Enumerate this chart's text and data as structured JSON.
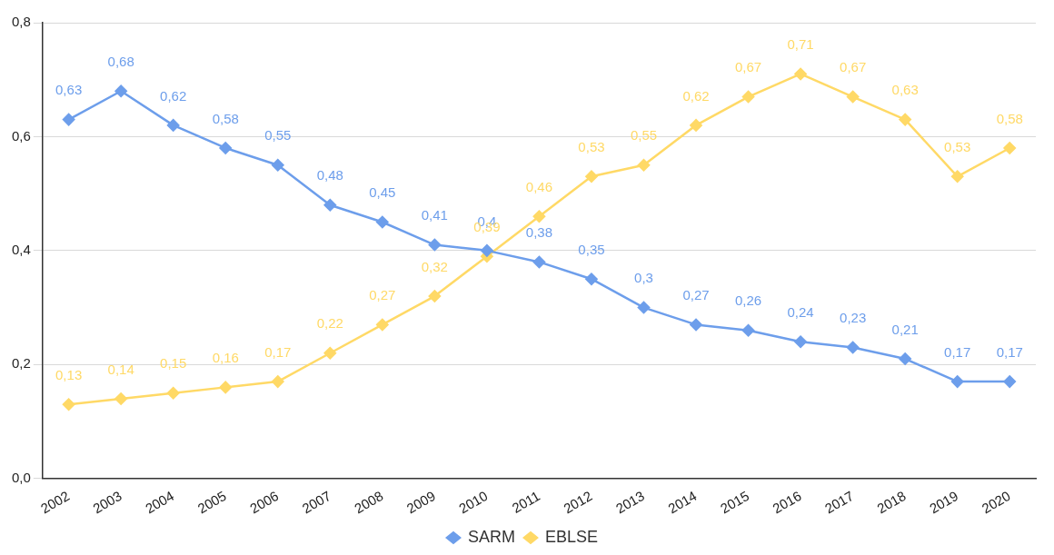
{
  "chart_data": {
    "type": "line",
    "categories": [
      "2002",
      "2003",
      "2004",
      "2005",
      "2006",
      "2007",
      "2008",
      "2009",
      "2010",
      "2011",
      "2012",
      "2013",
      "2014",
      "2015",
      "2016",
      "2017",
      "2018",
      "2019",
      "2020"
    ],
    "series": [
      {
        "name": "SARM",
        "color": "#6d9eeb",
        "values": [
          0.63,
          0.68,
          0.62,
          0.58,
          0.55,
          0.48,
          0.45,
          0.41,
          0.4,
          0.38,
          0.35,
          0.3,
          0.27,
          0.26,
          0.24,
          0.23,
          0.21,
          0.17,
          0.17
        ],
        "value_labels": [
          "0,63",
          "0,68",
          "0,62",
          "0,58",
          "0,55",
          "0,48",
          "0,45",
          "0,41",
          "0,4",
          "0,38",
          "0,35",
          "0,3",
          "0,27",
          "0,26",
          "0,24",
          "0,23",
          "0,21",
          "0,17",
          "0,17"
        ]
      },
      {
        "name": "EBLSE",
        "color": "#ffd966",
        "values": [
          0.13,
          0.14,
          0.15,
          0.16,
          0.17,
          0.22,
          0.27,
          0.32,
          0.39,
          0.46,
          0.53,
          0.55,
          0.62,
          0.67,
          0.71,
          0.67,
          0.63,
          0.53,
          0.58
        ],
        "value_labels": [
          "0,13",
          "0,14",
          "0,15",
          "0,16",
          "0,17",
          "0,22",
          "0,27",
          "0,32",
          "0,39",
          "0,46",
          "0,53",
          "0,55",
          "0,62",
          "0,67",
          "0,71",
          "0,67",
          "0,63",
          "0,53",
          "0,58"
        ]
      }
    ],
    "ylim": [
      0,
      0.8
    ],
    "yticks": [
      {
        "value": 0,
        "label": "0,0"
      },
      {
        "value": 0.2,
        "label": "0,2"
      },
      {
        "value": 0.4,
        "label": "0,4"
      },
      {
        "value": 0.6,
        "label": "0,6"
      },
      {
        "value": 0.8,
        "label": "0,8"
      }
    ],
    "grid": "y",
    "legend": "bottom",
    "marker": "diamond",
    "line_style": "solid"
  }
}
